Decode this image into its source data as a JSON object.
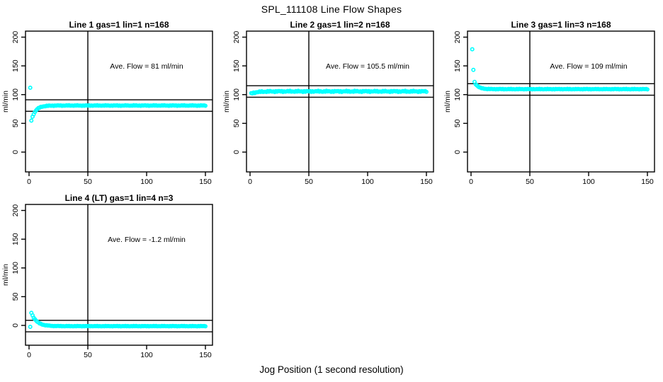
{
  "figure": {
    "title": "SPL_111108  Line Flow Shapes",
    "xlabel": "Jog Position (1 second resolution)",
    "background_color": "#ffffff",
    "point_color": "#00ffff",
    "line_color": "#000000"
  },
  "chart_data": [
    {
      "type": "scatter",
      "title": "Line 1 gas=1 lin=1 n=168",
      "gas": 1,
      "lin": 1,
      "n": 168,
      "annotation": "Ave. Flow =  81  ml/min",
      "ave_flow": 81,
      "ylabel": "ml/min",
      "xticks": [
        0,
        50,
        100,
        150
      ],
      "yticks": [
        0,
        50,
        100,
        150,
        200
      ],
      "xlim": [
        0,
        150
      ],
      "ylim": [
        0,
        200
      ],
      "grid": false,
      "marker": "open-circle",
      "vline_x": 50,
      "ref_lines": [
        91,
        71
      ],
      "outlier_points": [
        [
          1,
          112
        ]
      ],
      "decay": {
        "x_start": 2,
        "x_end": 150,
        "v_start": 55,
        "asymptote": 81,
        "tau": 3.5,
        "jitter": 0.6
      }
    },
    {
      "type": "scatter",
      "title": "Line 2 gas=1 lin=2 n=168",
      "gas": 1,
      "lin": 2,
      "n": 168,
      "annotation": "Ave. Flow =  105.5  ml/min",
      "ave_flow": 105.5,
      "ylabel": "ml/min",
      "xticks": [
        0,
        50,
        100,
        150
      ],
      "yticks": [
        0,
        50,
        100,
        150,
        200
      ],
      "xlim": [
        0,
        150
      ],
      "ylim": [
        0,
        200
      ],
      "grid": false,
      "marker": "open-circle",
      "vline_x": 50,
      "ref_lines": [
        115.5,
        95.5
      ],
      "outlier_points": [],
      "decay": {
        "x_start": 1,
        "x_end": 150,
        "v_start": 102,
        "asymptote": 105.6,
        "tau": 5,
        "jitter": 1.2
      }
    },
    {
      "type": "scatter",
      "title": "Line 3 gas=1 lin=3 n=168",
      "gas": 1,
      "lin": 3,
      "n": 168,
      "annotation": "Ave. Flow =  109  ml/min",
      "ave_flow": 109,
      "ylabel": "ml/min",
      "xticks": [
        0,
        50,
        100,
        150
      ],
      "yticks": [
        0,
        50,
        100,
        150,
        200
      ],
      "xlim": [
        0,
        150
      ],
      "ylim": [
        0,
        200
      ],
      "grid": false,
      "marker": "open-circle",
      "vline_x": 50,
      "ref_lines": [
        119,
        99
      ],
      "outlier_points": [
        [
          1,
          179
        ],
        [
          2,
          143
        ]
      ],
      "decay": {
        "x_start": 3,
        "x_end": 150,
        "v_start": 122,
        "asymptote": 109.5,
        "tau": 3,
        "jitter": 0.6
      }
    },
    {
      "type": "scatter",
      "title": "Line 4 (LT) gas=1 lin=4 n=3",
      "gas": 1,
      "lin": 4,
      "n": 3,
      "annotation": "Ave. Flow =  -1.2  ml/min",
      "ave_flow": -1.2,
      "ylabel": "ml/min",
      "xticks": [
        0,
        50,
        100,
        150
      ],
      "yticks": [
        0,
        50,
        100,
        150,
        200
      ],
      "xlim": [
        0,
        150
      ],
      "ylim": [
        0,
        200
      ],
      "grid": false,
      "marker": "open-circle",
      "vline_x": 50,
      "ref_lines": [
        8.8,
        -11.2
      ],
      "outlier_points": [
        [
          1,
          -2.5
        ]
      ],
      "decay": {
        "x_start": 2,
        "x_end": 150,
        "v_start": 22,
        "asymptote": -1.3,
        "tau": 4.5,
        "jitter": 0.5
      }
    }
  ]
}
